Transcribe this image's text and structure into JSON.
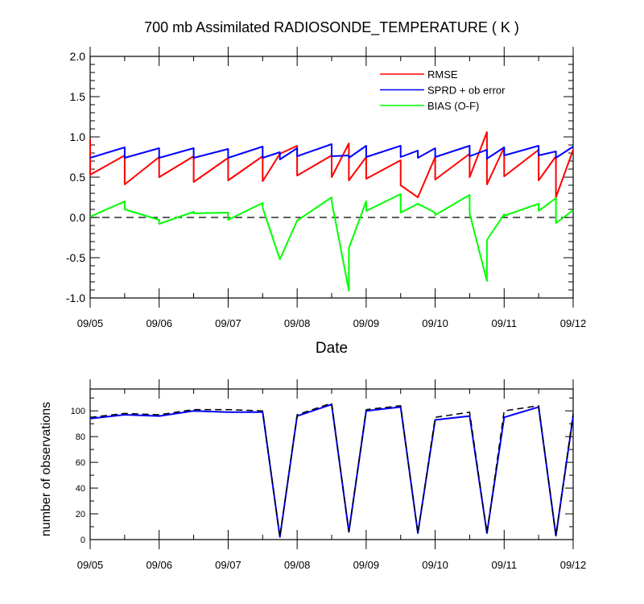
{
  "title": "700 mb Assimilated RADIOSONDE_TEMPERATURE ( K )",
  "chart_data": [
    {
      "type": "line",
      "xlabel": "Date",
      "ylabel": "",
      "x_tick_labels": [
        "09/05",
        "09/06",
        "09/07",
        "09/08",
        "09/09",
        "09/10",
        "09/11",
        "09/12"
      ],
      "xlim": [
        "09/05 00:00",
        "09/12 00:00"
      ],
      "ylim": [
        -1.0,
        2.0
      ],
      "y_ticks": [
        "-1.0",
        "-0.5",
        "0.0",
        "0.5",
        "1.0",
        "1.5",
        "2.0"
      ],
      "zero_line": "dashed",
      "grid": false,
      "legend_position": "top-right",
      "series": [
        {
          "name": "RMSE",
          "color": "#ff0000",
          "points": [
            [
              "09/05 00:00",
              0.97
            ],
            [
              "09/05 00:00",
              0.53
            ],
            [
              "09/05 12:00",
              0.77
            ],
            [
              "09/05 12:00",
              0.41
            ],
            [
              "09/06 00:00",
              0.75
            ],
            [
              "09/06 00:00",
              0.5
            ],
            [
              "09/06 12:00",
              0.76
            ],
            [
              "09/06 12:00",
              0.44
            ],
            [
              "09/07 00:00",
              0.74
            ],
            [
              "09/07 00:00",
              0.46
            ],
            [
              "09/07 12:00",
              0.76
            ],
            [
              "09/07 12:00",
              0.45
            ],
            [
              "09/07 18:00",
              0.79
            ],
            [
              "09/08 00:00",
              0.89
            ],
            [
              "09/08 00:00",
              0.52
            ],
            [
              "09/08 12:00",
              0.77
            ],
            [
              "09/08 12:00",
              0.5
            ],
            [
              "09/08 18:00",
              0.92
            ],
            [
              "09/08 18:00",
              0.46
            ],
            [
              "09/09 00:00",
              0.75
            ],
            [
              "09/09 00:00",
              0.48
            ],
            [
              "09/09 12:00",
              0.71
            ],
            [
              "09/09 12:00",
              0.4
            ],
            [
              "09/09 18:00",
              0.25
            ],
            [
              "09/10 00:00",
              0.75
            ],
            [
              "09/10 00:00",
              0.47
            ],
            [
              "09/10 12:00",
              0.79
            ],
            [
              "09/10 12:00",
              0.5
            ],
            [
              "09/10 18:00",
              1.06
            ],
            [
              "09/10 18:00",
              0.41
            ],
            [
              "09/11 00:00",
              0.87
            ],
            [
              "09/11 00:00",
              0.51
            ],
            [
              "09/11 12:00",
              0.84
            ],
            [
              "09/11 12:00",
              0.46
            ],
            [
              "09/11 18:00",
              0.76
            ],
            [
              "09/11 18:00",
              0.25
            ],
            [
              "09/12 00:00",
              0.84
            ]
          ]
        },
        {
          "name": "SPRD + ob error",
          "color": "#0000ff",
          "points": [
            [
              "09/05 00:00",
              0.74
            ],
            [
              "09/05 12:00",
              0.87
            ],
            [
              "09/05 12:00",
              0.74
            ],
            [
              "09/06 00:00",
              0.86
            ],
            [
              "09/06 00:00",
              0.74
            ],
            [
              "09/06 12:00",
              0.86
            ],
            [
              "09/06 12:00",
              0.74
            ],
            [
              "09/07 00:00",
              0.85
            ],
            [
              "09/07 00:00",
              0.74
            ],
            [
              "09/07 12:00",
              0.88
            ],
            [
              "09/07 12:00",
              0.74
            ],
            [
              "09/07 18:00",
              0.81
            ],
            [
              "09/07 18:00",
              0.72
            ],
            [
              "09/08 00:00",
              0.86
            ],
            [
              "09/08 00:00",
              0.76
            ],
            [
              "09/08 12:00",
              0.91
            ],
            [
              "09/08 12:00",
              0.76
            ],
            [
              "09/08 18:00",
              0.77
            ],
            [
              "09/08 18:00",
              0.74
            ],
            [
              "09/09 00:00",
              0.89
            ],
            [
              "09/09 00:00",
              0.75
            ],
            [
              "09/09 12:00",
              0.89
            ],
            [
              "09/09 12:00",
              0.75
            ],
            [
              "09/09 18:00",
              0.83
            ],
            [
              "09/09 18:00",
              0.74
            ],
            [
              "09/10 00:00",
              0.86
            ],
            [
              "09/10 00:00",
              0.75
            ],
            [
              "09/10 12:00",
              0.89
            ],
            [
              "09/10 12:00",
              0.76
            ],
            [
              "09/10 18:00",
              0.84
            ],
            [
              "09/10 18:00",
              0.73
            ],
            [
              "09/11 00:00",
              0.87
            ],
            [
              "09/11 00:00",
              0.77
            ],
            [
              "09/11 12:00",
              0.89
            ],
            [
              "09/11 12:00",
              0.77
            ],
            [
              "09/11 18:00",
              0.82
            ],
            [
              "09/11 18:00",
              0.74
            ],
            [
              "09/12 00:00",
              0.88
            ]
          ]
        },
        {
          "name": "BIAS (O-F)",
          "color": "#00ff00",
          "points": [
            [
              "09/05 00:00",
              0.01
            ],
            [
              "09/05 12:00",
              0.2
            ],
            [
              "09/05 12:00",
              0.1
            ],
            [
              "09/06 00:00",
              -0.03
            ],
            [
              "09/06 00:00",
              -0.08
            ],
            [
              "09/06 12:00",
              0.07
            ],
            [
              "09/06 12:00",
              0.05
            ],
            [
              "09/07 00:00",
              0.06
            ],
            [
              "09/07 00:00",
              -0.03
            ],
            [
              "09/07 12:00",
              0.18
            ],
            [
              "09/07 12:00",
              0.12
            ],
            [
              "09/07 18:00",
              -0.52
            ],
            [
              "09/08 00:00",
              -0.04
            ],
            [
              "09/08 12:00",
              0.25
            ],
            [
              "09/08 12:00",
              0.2
            ],
            [
              "09/08 18:00",
              -0.91
            ],
            [
              "09/08 18:00",
              -0.38
            ],
            [
              "09/09 00:00",
              0.2
            ],
            [
              "09/09 00:00",
              0.08
            ],
            [
              "09/09 12:00",
              0.29
            ],
            [
              "09/09 12:00",
              0.06
            ],
            [
              "09/09 18:00",
              0.17
            ],
            [
              "09/10 00:00",
              0.06
            ],
            [
              "09/10 00:00",
              0.03
            ],
            [
              "09/10 12:00",
              0.28
            ],
            [
              "09/10 12:00",
              0.05
            ],
            [
              "09/10 18:00",
              -0.79
            ],
            [
              "09/10 18:00",
              -0.28
            ],
            [
              "09/11 00:00",
              0.04
            ],
            [
              "09/11 00:00",
              0.02
            ],
            [
              "09/11 12:00",
              0.17
            ],
            [
              "09/11 12:00",
              0.08
            ],
            [
              "09/11 18:00",
              0.24
            ],
            [
              "09/11 18:00",
              -0.07
            ],
            [
              "09/12 00:00",
              0.09
            ]
          ]
        }
      ]
    },
    {
      "type": "line",
      "xlabel": "",
      "ylabel": "number of observations",
      "x_tick_labels": [
        "09/05",
        "09/06",
        "09/07",
        "09/08",
        "09/09",
        "09/10",
        "09/11",
        "09/12"
      ],
      "xlim": [
        "09/05 00:00",
        "09/12 00:00"
      ],
      "ylim": [
        0,
        117
      ],
      "y_ticks": [
        "0",
        "20",
        "40",
        "60",
        "80",
        "100"
      ],
      "grid": false,
      "series": [
        {
          "color": "#0000ff",
          "style": "solid",
          "points": [
            [
              "09/05 00:00",
              94
            ],
            [
              "09/05 12:00",
              97
            ],
            [
              "09/06 00:00",
              96
            ],
            [
              "09/06 12:00",
              100
            ],
            [
              "09/07 00:00",
              99
            ],
            [
              "09/07 12:00",
              99
            ],
            [
              "09/07 18:00",
              2
            ],
            [
              "09/08 00:00",
              96
            ],
            [
              "09/08 12:00",
              105
            ],
            [
              "09/08 18:00",
              6
            ],
            [
              "09/09 00:00",
              100
            ],
            [
              "09/09 12:00",
              103
            ],
            [
              "09/09 18:00",
              5
            ],
            [
              "09/10 00:00",
              93
            ],
            [
              "09/10 12:00",
              96
            ],
            [
              "09/10 18:00",
              5
            ],
            [
              "09/11 00:00",
              95
            ],
            [
              "09/11 12:00",
              103
            ],
            [
              "09/11 18:00",
              3
            ],
            [
              "09/12 00:00",
              96
            ]
          ]
        },
        {
          "color": "#000000",
          "style": "dashed",
          "points": [
            [
              "09/05 00:00",
              95
            ],
            [
              "09/05 12:00",
              98
            ],
            [
              "09/06 00:00",
              97
            ],
            [
              "09/06 12:00",
              101
            ],
            [
              "09/07 00:00",
              101
            ],
            [
              "09/07 12:00",
              100
            ],
            [
              "09/07 18:00",
              2
            ],
            [
              "09/08 00:00",
              97
            ],
            [
              "09/08 12:00",
              106
            ],
            [
              "09/08 18:00",
              6
            ],
            [
              "09/09 00:00",
              101
            ],
            [
              "09/09 12:00",
              104
            ],
            [
              "09/09 18:00",
              5
            ],
            [
              "09/10 00:00",
              95
            ],
            [
              "09/10 12:00",
              99
            ],
            [
              "09/10 18:00",
              5
            ],
            [
              "09/11 00:00",
              100
            ],
            [
              "09/11 12:00",
              104
            ],
            [
              "09/11 18:00",
              3
            ],
            [
              "09/12 00:00",
              98
            ]
          ]
        }
      ]
    }
  ]
}
